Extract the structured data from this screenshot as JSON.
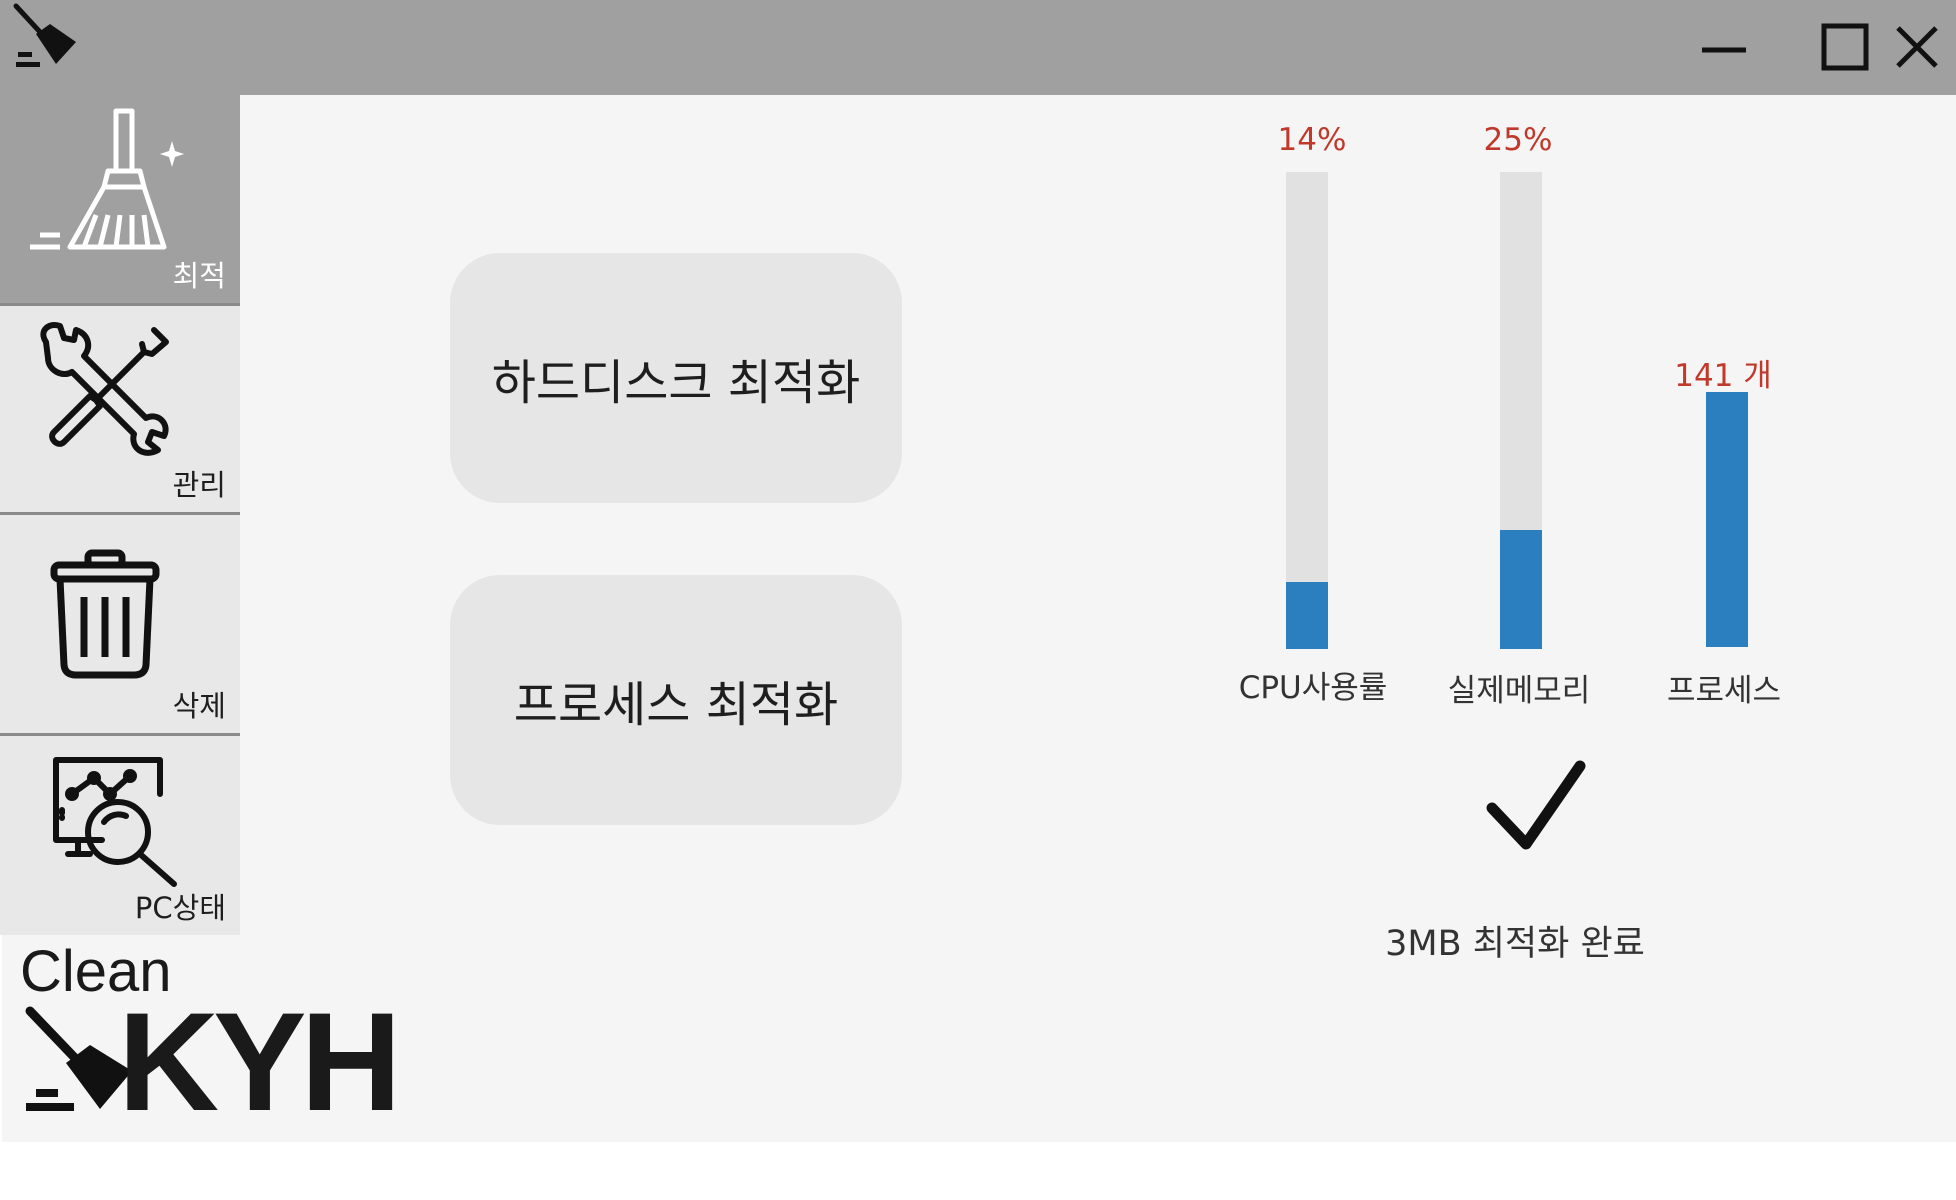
{
  "window": {
    "controls": {
      "minimize_icon": "minimize-icon",
      "maximize_icon": "maximize-icon",
      "close_icon": "close-icon"
    }
  },
  "sidebar": {
    "items": [
      {
        "label": "최적",
        "icon": "broom-icon",
        "active": true
      },
      {
        "label": "관리",
        "icon": "tools-icon",
        "active": false
      },
      {
        "label": "삭제",
        "icon": "trash-icon",
        "active": false
      },
      {
        "label": "PC상태",
        "icon": "monitor-search-icon",
        "active": false
      }
    ]
  },
  "logo": {
    "line1": "Clean",
    "line2": "KYH"
  },
  "main": {
    "buttons": [
      {
        "label": "하드디스크 최적화"
      },
      {
        "label": "프로세스 최적화"
      }
    ]
  },
  "stats": [
    {
      "label": "CPU사용률",
      "value_text": "14%",
      "fill_fraction": 0.14
    },
    {
      "label": "실제메모리",
      "value_text": "25%",
      "fill_fraction": 0.25
    },
    {
      "label": "프로세스",
      "value_text": "141 개",
      "fill_fraction": 1.0
    }
  ],
  "result": {
    "icon": "checkmark-icon",
    "text": "3MB 최적화 완료"
  },
  "colors": {
    "titlebar": "#a0a0a0",
    "active_nav": "#a0a0a0",
    "bar_fill": "#2b7fbf",
    "bar_track": "#e1e1e1",
    "value_text": "#c0392b"
  }
}
